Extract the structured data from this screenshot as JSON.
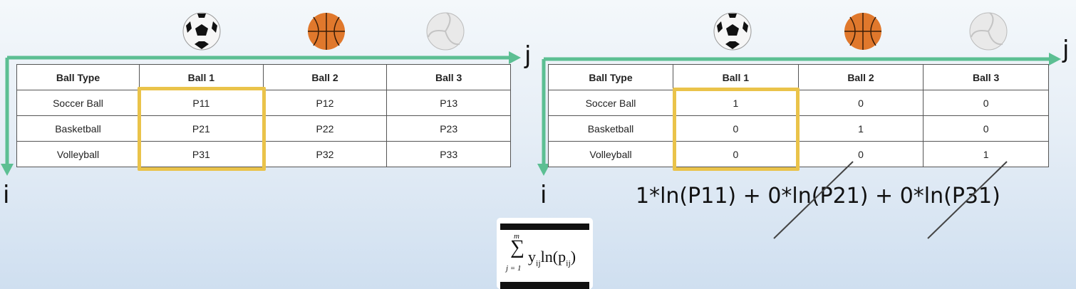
{
  "left_panel": {
    "axis_j": "j",
    "axis_i": "i",
    "balls": [
      "soccer-ball-icon",
      "basketball-icon",
      "volleyball-icon"
    ],
    "headers": [
      "Ball Type",
      "Ball 1",
      "Ball 2",
      "Ball 3"
    ],
    "rows": [
      [
        "Soccer Ball",
        "P11",
        "P12",
        "P13"
      ],
      [
        "Basketball",
        "P21",
        "P22",
        "P23"
      ],
      [
        "Volleyball",
        "P31",
        "P32",
        "P33"
      ]
    ],
    "highlight_column": 1
  },
  "right_panel": {
    "axis_j": "j",
    "axis_i": "i",
    "balls": [
      "soccer-ball-icon",
      "basketball-icon",
      "volleyball-icon"
    ],
    "headers": [
      "Ball Type",
      "Ball 1",
      "Ball 2",
      "Ball 3"
    ],
    "rows": [
      [
        "Soccer Ball",
        "1",
        "0",
        "0"
      ],
      [
        "Basketball",
        "0",
        "1",
        "0"
      ],
      [
        "Volleyball",
        "0",
        "0",
        "1"
      ]
    ],
    "highlight_column": 1,
    "formula": {
      "term1": "1*ln(P11)",
      "plus1": "+",
      "term2": "0*ln(P21)",
      "plus2": "+",
      "term3": "0*ln(P31)"
    }
  },
  "sum_formula": {
    "upper": "m",
    "symbol": "∑",
    "lower": "j = 1",
    "y": "y",
    "y_sub": "ij",
    "ln": "ln(p",
    "p_sub": "ij",
    "close": ")"
  },
  "colors": {
    "axis": "#5cbf93",
    "highlight": "#eac34a",
    "strike": "#444444"
  }
}
